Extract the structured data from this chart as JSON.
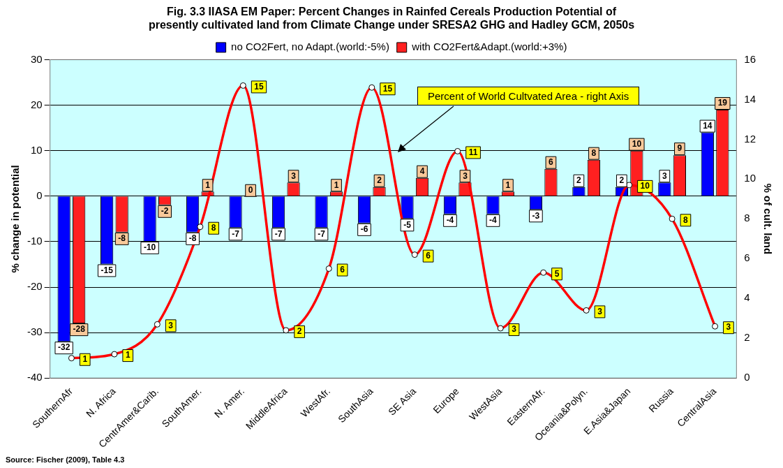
{
  "chart_data": {
    "type": "bar",
    "title": "Fig. 3.3 IIASA EM Paper: Percent Changes in Rainfed Cereals Production Potential of presently cultivated land from Climate Change under SRESA2 GHG and Hadley GCM, 2050s",
    "ylabel": "% change in potential",
    "y2label": "% of cult. land",
    "categories": [
      "SouthernAfr",
      "N. Africa",
      "CentrAmer&Carib.",
      "SouthAmer.",
      "N. Amer.",
      "MiddleAfrica",
      "WestAfr.",
      "SouthAsia",
      "SE Asia",
      "Europe",
      "WestAsia",
      "EasternAfr.",
      "Oceania&Polyn.",
      "E.Asia&Japan",
      "Russia",
      "CentralAsia"
    ],
    "series": [
      {
        "name": "no CO2Fert, no Adapt.(world:-5%)",
        "color": "#0000ff",
        "values": [
          -32,
          -15,
          -10,
          -8,
          -7,
          -7,
          -7,
          -6,
          -5,
          -4,
          -4,
          -3,
          2,
          2,
          3,
          14
        ],
        "value_labels": [
          "-32",
          "-15",
          "-10",
          "-8",
          "-7",
          "-7",
          "-7",
          "-6",
          "-5",
          "-4",
          "-4",
          "-3",
          "2",
          "2",
          "3",
          "14"
        ]
      },
      {
        "name": "with CO2Fert&Adapt.(world:+3%)",
        "color": "#ff2020",
        "values": [
          -28,
          -8,
          -2,
          1,
          0,
          3,
          1,
          2,
          4,
          3,
          1,
          6,
          8,
          10,
          9,
          19
        ],
        "value_labels": [
          "-28",
          "-8",
          "-2",
          "1",
          "0",
          "3",
          "1",
          "2",
          "4",
          "3",
          "1",
          "6",
          "8",
          "10",
          "9",
          "19"
        ]
      },
      {
        "type": "line",
        "axis": "y2",
        "color": "#ff0000",
        "marker": "circle",
        "values": [
          1.0,
          1.2,
          2.7,
          7.6,
          14.7,
          2.4,
          5.5,
          14.6,
          6.2,
          11.4,
          2.5,
          5.3,
          3.4,
          9.7,
          8.0,
          2.6
        ],
        "value_labels": [
          "1",
          "1",
          "3",
          "8",
          "15",
          "2",
          "6",
          "15",
          "6",
          "11",
          "3",
          "5",
          "3",
          "10",
          "8",
          "3"
        ]
      }
    ],
    "ylim": [
      -40,
      30
    ],
    "yticks": [
      -40,
      -30,
      -20,
      -10,
      0,
      10,
      20,
      30
    ],
    "y2lim": [
      0,
      16
    ],
    "y2ticks": [
      0,
      2,
      4,
      6,
      8,
      10,
      12,
      14,
      16
    ],
    "grid": "y",
    "legend": "top",
    "annotations": [
      "Percent of World Cultvated Area - right Axis",
      "Source: Fischer (2009), Table 4.3"
    ]
  }
}
